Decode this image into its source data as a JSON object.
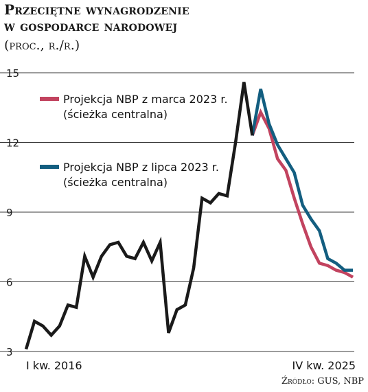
{
  "chart_data": {
    "type": "line",
    "title_line1": "Przeciętne wynagrodzenie",
    "title_line2": "w gospodarce narodowej",
    "subtitle": "(proc., r./r.)",
    "source": "Źródło: GUS, NBP",
    "yticks": [
      3,
      6,
      9,
      12,
      15
    ],
    "ylim": [
      3,
      15
    ],
    "x_start_label": "I kw. 2016",
    "x_end_label": "IV kw. 2025",
    "n_periods": 40,
    "grid": true,
    "legend_placement": "top-left",
    "series": [
      {
        "key": "actual",
        "color": "#1a1a1a",
        "start_index": 0,
        "values": [
          3.1,
          4.3,
          4.1,
          3.7,
          4.1,
          5.0,
          4.9,
          7.1,
          6.2,
          7.1,
          7.6,
          7.7,
          7.1,
          7.0,
          7.7,
          6.9,
          7.7,
          3.8,
          4.8,
          5.0,
          6.6,
          9.6,
          9.4,
          9.8,
          9.7,
          12.0,
          14.6,
          12.3
        ]
      },
      {
        "key": "march",
        "legend_line1": "Projekcja NBP z marca 2023 r.",
        "legend_line2": "(ścieżka centralna)",
        "color": "#c2435f",
        "start_index": 27,
        "values": [
          12.3,
          13.3,
          12.6,
          11.3,
          10.8,
          9.6,
          8.5,
          7.5,
          6.8,
          6.7,
          6.5,
          6.4,
          6.2
        ]
      },
      {
        "key": "july",
        "legend_line1": "Projekcja NBP z lipca 2023 r.",
        "legend_line2": "(ścieżka centralna)",
        "color": "#135e80",
        "start_index": 27,
        "values": [
          12.3,
          14.3,
          12.8,
          11.9,
          11.3,
          10.7,
          9.3,
          8.7,
          8.2,
          7.0,
          6.8,
          6.5,
          6.5
        ]
      }
    ]
  }
}
